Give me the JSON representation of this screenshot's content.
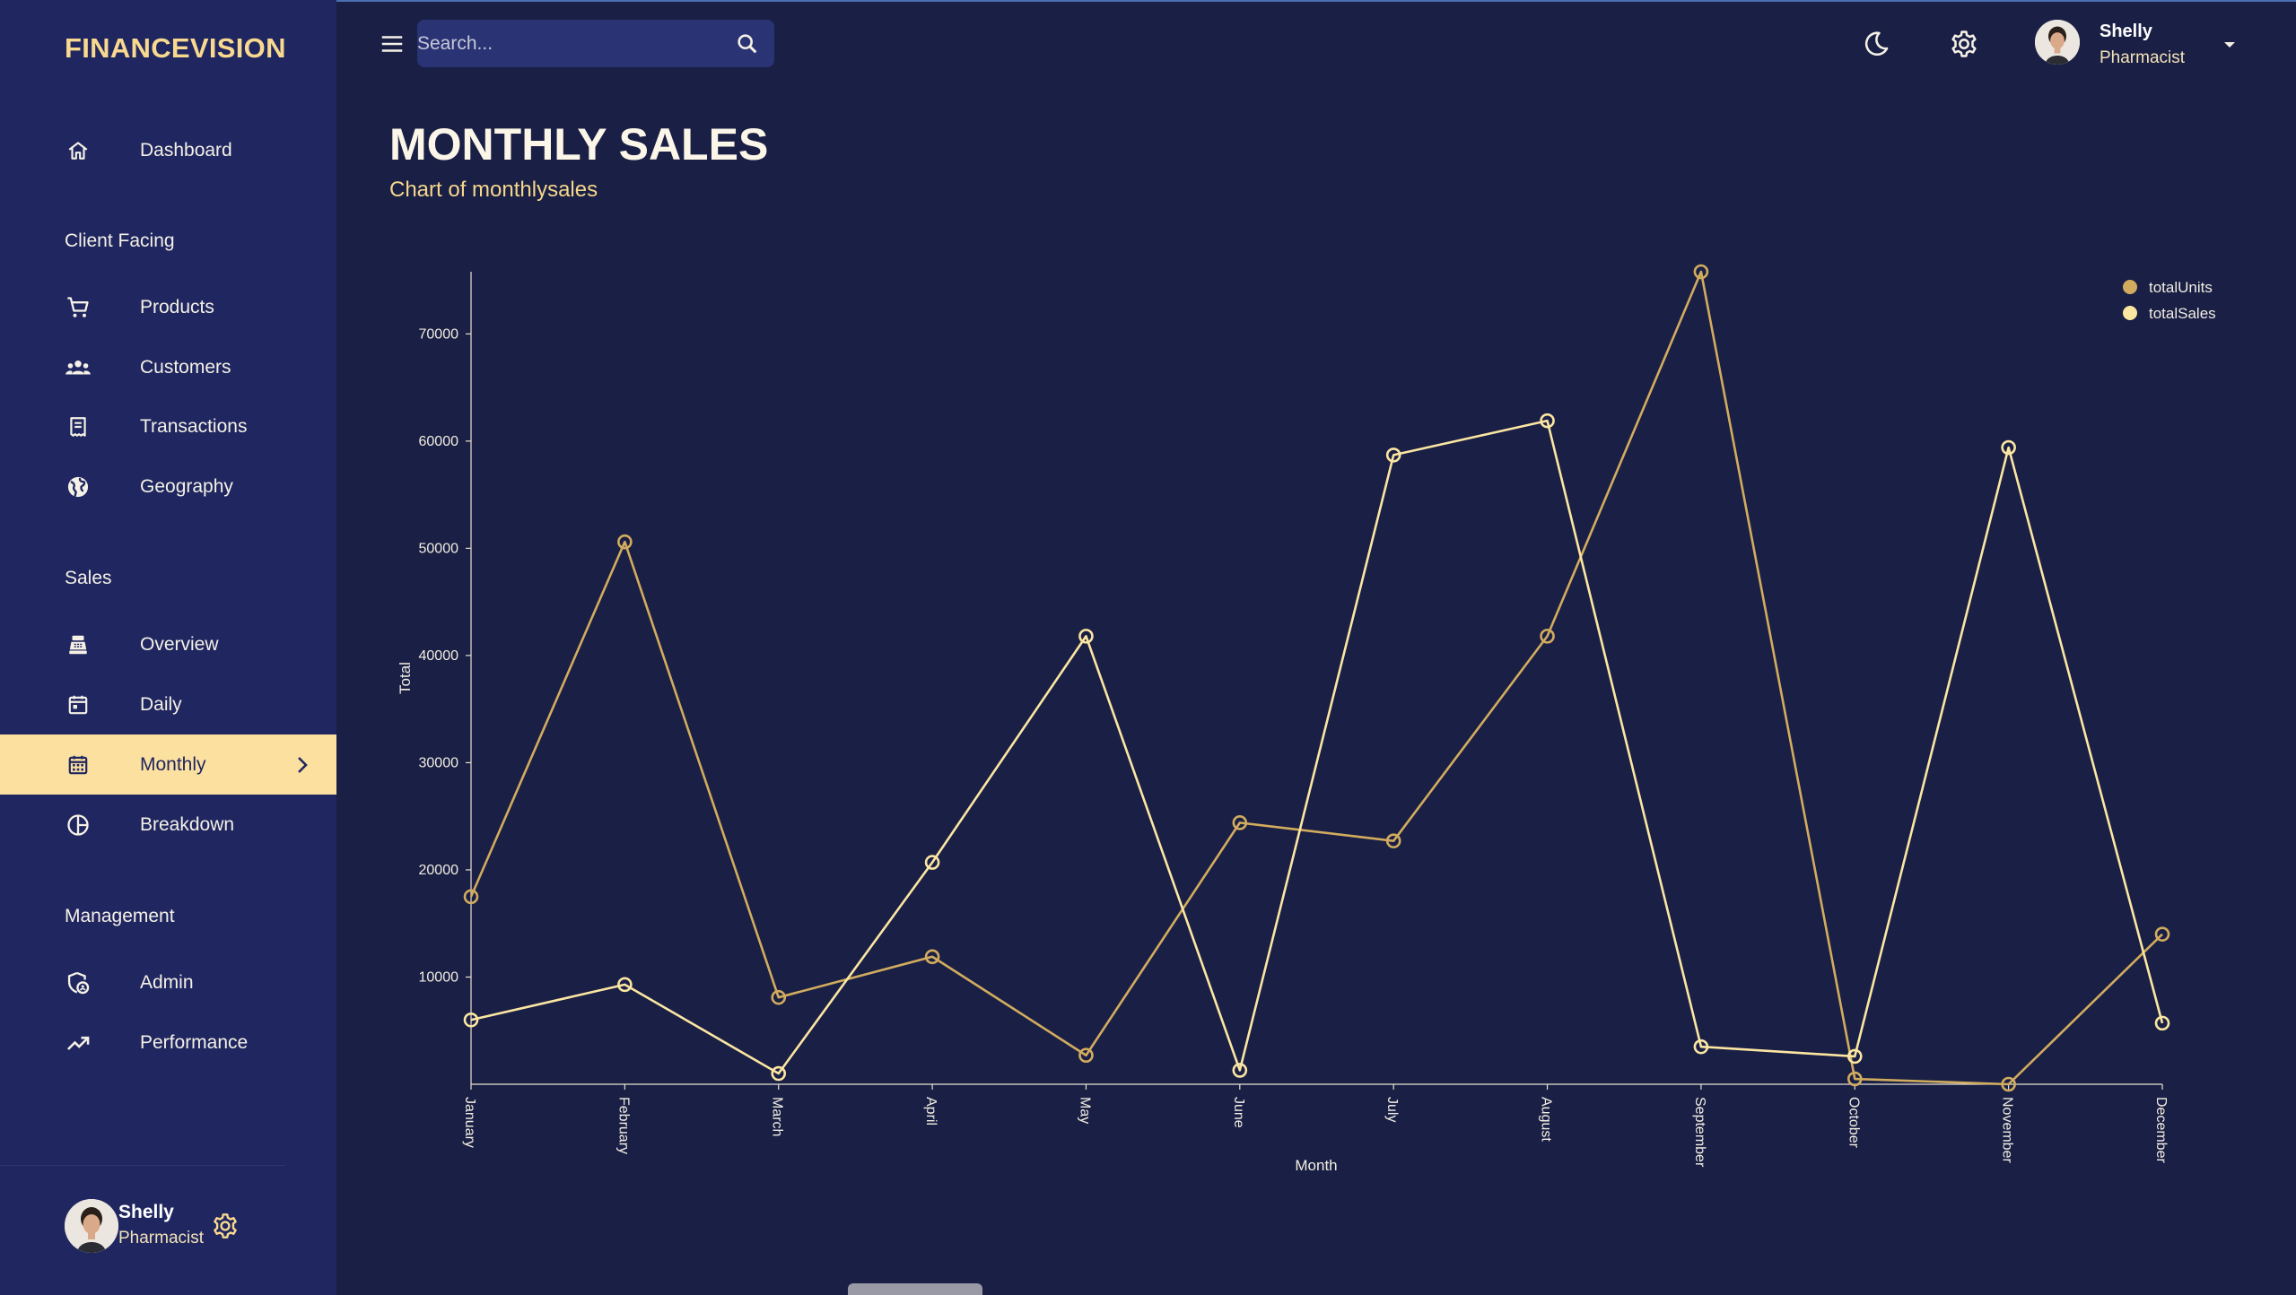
{
  "app": {
    "brand": "FINANCEVISION"
  },
  "sidebar": {
    "sections": {
      "client_facing": "Client Facing",
      "sales": "Sales",
      "management": "Management"
    },
    "items": {
      "dashboard": "Dashboard",
      "products": "Products",
      "customers": "Customers",
      "transactions": "Transactions",
      "geography": "Geography",
      "overview": "Overview",
      "daily": "Daily",
      "monthly": "Monthly",
      "breakdown": "Breakdown",
      "admin": "Admin",
      "performance": "Performance"
    },
    "active_item": "monthly",
    "user": {
      "name": "Shelly",
      "role": "Pharmacist"
    }
  },
  "topbar": {
    "search_placeholder": "Search...",
    "user": {
      "name": "Shelly",
      "role": "Pharmacist"
    }
  },
  "header": {
    "title": "MONTHLY SALES",
    "subtitle": "Chart of monthlysales"
  },
  "colors": {
    "background": "#1a1f45",
    "sidebar": "#1f2660",
    "accent": "#f8d98f",
    "active_bg": "#fbe0a0",
    "totalSales": "#fbe6a2",
    "totalUnits": "#d2ac5e"
  },
  "chart_data": {
    "type": "line",
    "xlabel": "Month",
    "ylabel": "Total",
    "categories": [
      "January",
      "February",
      "March",
      "April",
      "May",
      "June",
      "July",
      "August",
      "September",
      "October",
      "November",
      "December"
    ],
    "ylim": [
      0,
      75800
    ],
    "yticks": [
      10000,
      20000,
      30000,
      40000,
      50000,
      60000,
      70000
    ],
    "legend_position": "top-right",
    "grid": false,
    "series": [
      {
        "name": "totalUnits",
        "color": "#d2ac5e",
        "values": [
          17500,
          50600,
          8100,
          11900,
          2700,
          24400,
          22700,
          41800,
          75800,
          500,
          0,
          14000
        ]
      },
      {
        "name": "totalSales",
        "color": "#fbe6a2",
        "values": [
          6000,
          9300,
          1000,
          20700,
          41800,
          1300,
          58700,
          61900,
          3500,
          2600,
          59400,
          5700
        ]
      }
    ]
  }
}
